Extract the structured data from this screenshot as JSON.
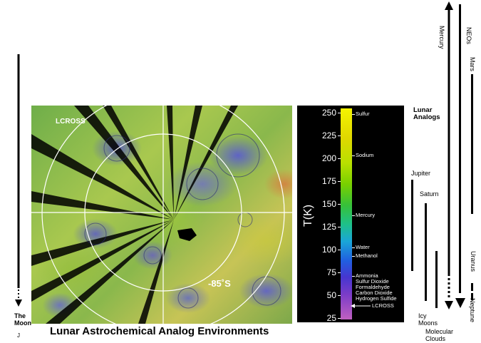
{
  "title": "Lunar Astrochemical Analog Environments",
  "map": {
    "label_lcross": "LCROSS",
    "label_latitude": "-85˚S"
  },
  "scale": {
    "axis_title": "T(K)",
    "ticks": [
      "250",
      "225",
      "200",
      "175",
      "150",
      "125",
      "100",
      "75",
      "50",
      "25"
    ],
    "compounds": [
      "Sulfur",
      "Sodium",
      "Mercury",
      "Water",
      "Methanol",
      "Ammonia",
      "Sulfur Dioxide",
      "Formaldehyde",
      "Carbon Dioxide",
      "Hydrogen Sulfide"
    ],
    "lcross_label": "LCROSS"
  },
  "labels": {
    "lunar_analogs": [
      "Lunar",
      "Analogs"
    ],
    "the_moon": [
      "The",
      "Moon"
    ],
    "moon_letter": "J",
    "jupiter": "Jupiter",
    "saturn": "Saturn",
    "icy_moons": [
      "Icy",
      "Moons"
    ],
    "molecular_clouds": [
      "Molecular",
      "Clouds"
    ],
    "mercury": "Mercury",
    "neos": "NEOs",
    "mars": "Mars",
    "uranus": "Uranus",
    "neptune": "Neptune"
  }
}
